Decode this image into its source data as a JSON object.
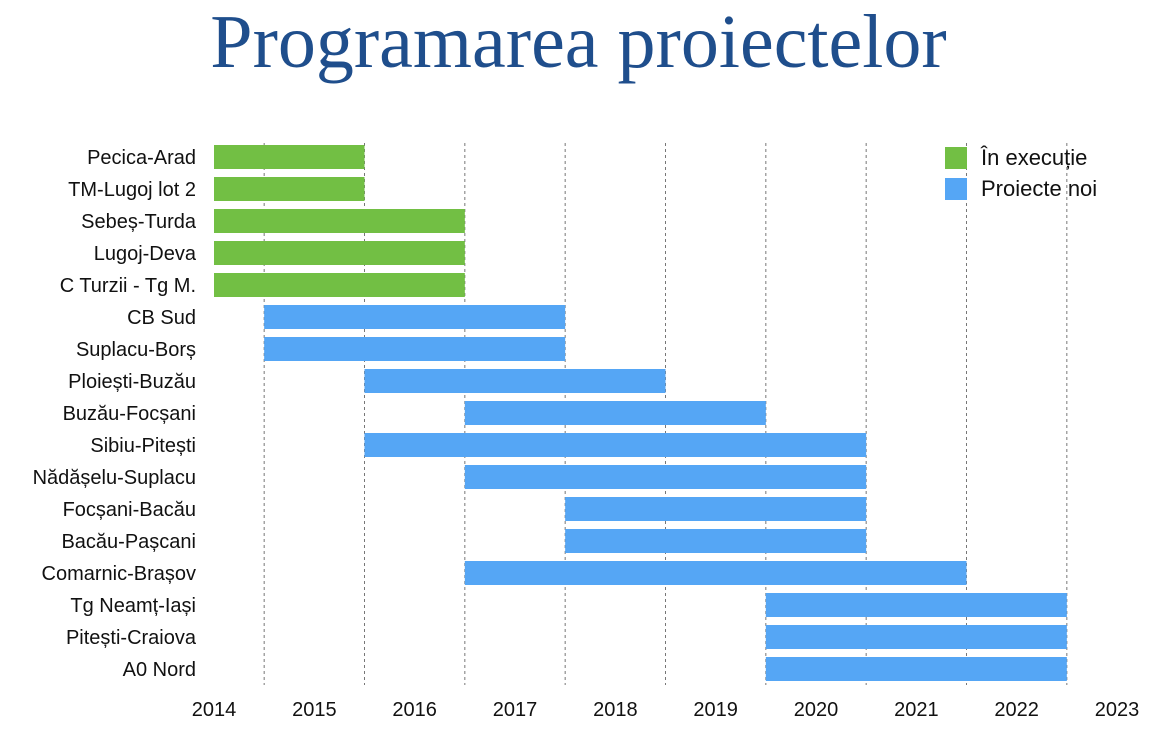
{
  "page": {
    "title": "Programarea proiectelor"
  },
  "chart_data": {
    "type": "bar",
    "orientation": "horizontal-gantt",
    "title": "Programarea proiectelor",
    "xlim": [
      2014,
      2023
    ],
    "xticks": [
      "2014",
      "2015",
      "2016",
      "2017",
      "2018",
      "2019",
      "2020",
      "2021",
      "2022",
      "2023"
    ],
    "grid": "vertical dashed",
    "legend_position": "top-right",
    "series": [
      {
        "name": "În execuție",
        "color": "#72bf44"
      },
      {
        "name": "Proiecte noi",
        "color": "#55a6f5"
      }
    ],
    "tasks": [
      {
        "label": "Pecica-Arad",
        "start": 2014.0,
        "end": 2015.5,
        "series": 0
      },
      {
        "label": "TM-Lugoj lot 2",
        "start": 2014.0,
        "end": 2015.5,
        "series": 0
      },
      {
        "label": "Sebeș-Turda",
        "start": 2014.0,
        "end": 2016.5,
        "series": 0
      },
      {
        "label": "Lugoj-Deva",
        "start": 2014.0,
        "end": 2016.5,
        "series": 0
      },
      {
        "label": "C Turzii - Tg M.",
        "start": 2014.0,
        "end": 2016.5,
        "series": 0
      },
      {
        "label": "CB Sud",
        "start": 2014.5,
        "end": 2017.5,
        "series": 1
      },
      {
        "label": "Suplacu-Borș",
        "start": 2014.5,
        "end": 2017.5,
        "series": 1
      },
      {
        "label": "Ploiești-Buzău",
        "start": 2015.5,
        "end": 2018.5,
        "series": 1
      },
      {
        "label": "Buzău-Focșani",
        "start": 2016.5,
        "end": 2019.5,
        "series": 1
      },
      {
        "label": "Sibiu-Pitești",
        "start": 2015.5,
        "end": 2020.5,
        "series": 1
      },
      {
        "label": "Nădășelu-Suplacu",
        "start": 2016.5,
        "end": 2020.5,
        "series": 1
      },
      {
        "label": "Focșani-Bacău",
        "start": 2017.5,
        "end": 2020.5,
        "series": 1
      },
      {
        "label": "Bacău-Pașcani",
        "start": 2017.5,
        "end": 2020.5,
        "series": 1
      },
      {
        "label": "Comarnic-Brașov",
        "start": 2016.5,
        "end": 2021.5,
        "series": 1
      },
      {
        "label": "Tg Neamț-Iași",
        "start": 2019.5,
        "end": 2022.5,
        "series": 1
      },
      {
        "label": "Pitești-Craiova",
        "start": 2019.5,
        "end": 2022.5,
        "series": 1
      },
      {
        "label": "A0 Nord",
        "start": 2019.5,
        "end": 2022.5,
        "series": 1
      }
    ]
  }
}
